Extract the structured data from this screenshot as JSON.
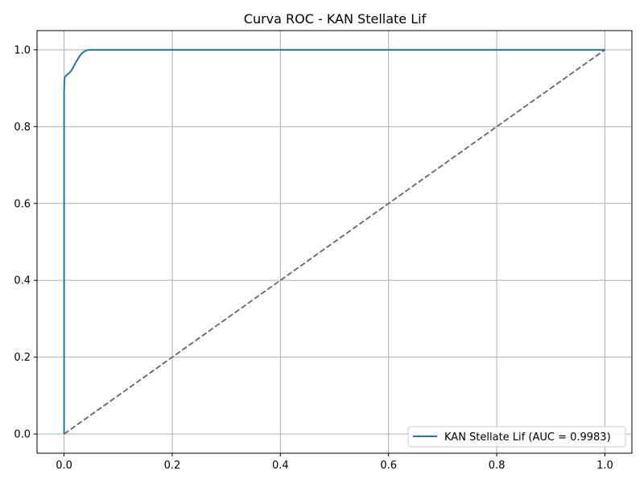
{
  "chart_data": {
    "type": "line",
    "title": "Curva ROC - KAN Stellate Lif",
    "xlabel": "",
    "ylabel": "",
    "xlim": [
      -0.05,
      1.05
    ],
    "ylim": [
      -0.05,
      1.05
    ],
    "grid": true,
    "legend_position": "lower-right",
    "x_ticks": [
      0.0,
      0.2,
      0.4,
      0.6,
      0.8,
      1.0
    ],
    "x_tick_labels": [
      "0.0",
      "0.2",
      "0.4",
      "0.6",
      "0.8",
      "1.0"
    ],
    "y_ticks": [
      0.0,
      0.2,
      0.4,
      0.6,
      0.8,
      1.0
    ],
    "y_tick_labels": [
      "0.0",
      "0.2",
      "0.4",
      "0.6",
      "0.8",
      "1.0"
    ],
    "series": [
      {
        "name": "KAN Stellate Lif (AUC = 0.9983)",
        "color": "#1f77b4",
        "style": "solid",
        "x": [
          0.0,
          0.0,
          0.0005,
          0.001,
          0.002,
          0.004,
          0.007,
          0.01,
          0.013,
          0.016,
          0.019,
          0.022,
          0.025,
          0.028,
          0.031,
          0.034,
          0.037,
          0.04,
          0.043,
          0.046,
          0.1,
          1.0
        ],
        "y": [
          0.0,
          0.89,
          0.915,
          0.925,
          0.93,
          0.933,
          0.937,
          0.94,
          0.945,
          0.952,
          0.96,
          0.968,
          0.975,
          0.982,
          0.988,
          0.992,
          0.995,
          0.998,
          0.999,
          1.0,
          1.0,
          1.0
        ]
      },
      {
        "name": "",
        "color": "#666666",
        "style": "dashed",
        "x": [
          0.0,
          1.0
        ],
        "y": [
          0.0,
          1.0
        ]
      }
    ]
  }
}
